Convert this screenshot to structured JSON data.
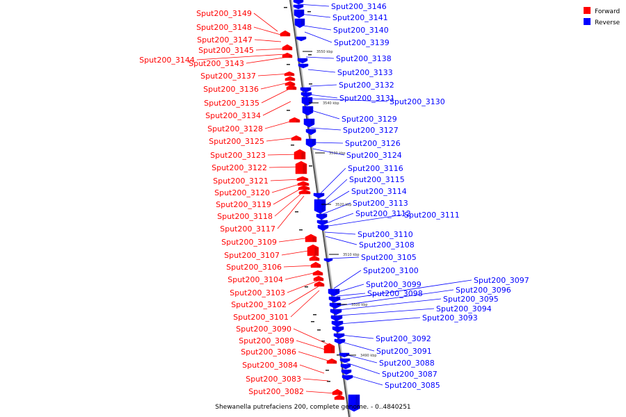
{
  "legend": [
    {
      "label": "Forward",
      "color": "#ff0000"
    },
    {
      "label": "Reverse",
      "color": "#0000ff"
    }
  ],
  "caption": "Shewanella putrefaciens 200, complete genome. - 0..4840251",
  "ticks": [
    "3550 kbp",
    "3540 kbp",
    "3530 kbp",
    "3520 kbp",
    "3510 kbp",
    "3500 kbp",
    "3490 kbp"
  ],
  "forward_genes": [
    {
      "name": "Sput200_3149"
    },
    {
      "name": "Sput200_3148"
    },
    {
      "name": "Sput200_3147"
    },
    {
      "name": "Sput200_3145"
    },
    {
      "name": "Sput200_3144"
    },
    {
      "name": "Sput200_3143"
    },
    {
      "name": "Sput200_3137"
    },
    {
      "name": "Sput200_3136"
    },
    {
      "name": "Sput200_3135"
    },
    {
      "name": "Sput200_3134"
    },
    {
      "name": "Sput200_3128"
    },
    {
      "name": "Sput200_3125"
    },
    {
      "name": "Sput200_3123"
    },
    {
      "name": "Sput200_3122"
    },
    {
      "name": "Sput200_3121"
    },
    {
      "name": "Sput200_3120"
    },
    {
      "name": "Sput200_3119"
    },
    {
      "name": "Sput200_3118"
    },
    {
      "name": "Sput200_3117"
    },
    {
      "name": "Sput200_3109"
    },
    {
      "name": "Sput200_3107"
    },
    {
      "name": "Sput200_3106"
    },
    {
      "name": "Sput200_3104"
    },
    {
      "name": "Sput200_3103"
    },
    {
      "name": "Sput200_3102"
    },
    {
      "name": "Sput200_3101"
    },
    {
      "name": "Sput200_3090"
    },
    {
      "name": "Sput200_3089"
    },
    {
      "name": "Sput200_3086"
    },
    {
      "name": "Sput200_3084"
    },
    {
      "name": "Sput200_3083"
    },
    {
      "name": "Sput200_3082"
    }
  ],
  "reverse_genes": [
    {
      "name": "Sput200_3146"
    },
    {
      "name": "Sput200_3141"
    },
    {
      "name": "Sput200_3140"
    },
    {
      "name": "Sput200_3139"
    },
    {
      "name": "Sput200_3138"
    },
    {
      "name": "Sput200_3133"
    },
    {
      "name": "Sput200_3132"
    },
    {
      "name": "Sput200_3131"
    },
    {
      "name": "Sput200_3130"
    },
    {
      "name": "Sput200_3129"
    },
    {
      "name": "Sput200_3127"
    },
    {
      "name": "Sput200_3126"
    },
    {
      "name": "Sput200_3124"
    },
    {
      "name": "Sput200_3116"
    },
    {
      "name": "Sput200_3115"
    },
    {
      "name": "Sput200_3114"
    },
    {
      "name": "Sput200_3113"
    },
    {
      "name": "Sput200_3112"
    },
    {
      "name": "Sput200_3111"
    },
    {
      "name": "Sput200_3110"
    },
    {
      "name": "Sput200_3108"
    },
    {
      "name": "Sput200_3105"
    },
    {
      "name": "Sput200_3100"
    },
    {
      "name": "Sput200_3099"
    },
    {
      "name": "Sput200_3098"
    },
    {
      "name": "Sput200_3097"
    },
    {
      "name": "Sput200_3096"
    },
    {
      "name": "Sput200_3095"
    },
    {
      "name": "Sput200_3094"
    },
    {
      "name": "Sput200_3093"
    },
    {
      "name": "Sput200_3092"
    },
    {
      "name": "Sput200_3091"
    },
    {
      "name": "Sput200_3088"
    },
    {
      "name": "Sput200_3087"
    },
    {
      "name": "Sput200_3085"
    }
  ]
}
